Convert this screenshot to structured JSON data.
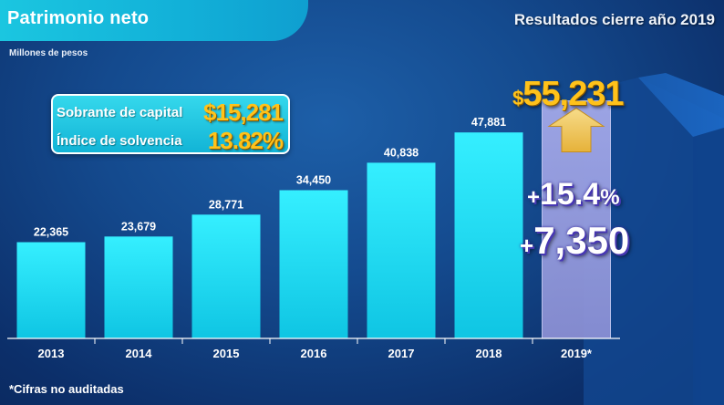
{
  "header": {
    "title": "Patrimonio neto",
    "subtitle": "Resultados cierre año 2019"
  },
  "units": "Millones de pesos",
  "footnote": "*Cifras no auditadas",
  "info_box": {
    "capital_label": "Sobrante de capital",
    "capital_value": "$15,281",
    "solvency_label": "Índice de solvencia",
    "solvency_value": "13.82%"
  },
  "highlight": {
    "total_currency": "$",
    "total_value": "55,231",
    "growth_pct_sign": "+",
    "growth_pct_value": "15.4",
    "growth_pct_unit": "%",
    "growth_abs_sign": "+",
    "growth_abs_value": "7,350"
  },
  "colors": {
    "bar": "#1ee3f5",
    "highlight_bar": "#9aa0e0",
    "accent": "#ffc21a"
  },
  "chart_data": {
    "type": "bar",
    "title": "Patrimonio neto",
    "ylabel": "Millones de pesos",
    "categories": [
      "2013",
      "2014",
      "2015",
      "2016",
      "2017",
      "2018",
      "2019*"
    ],
    "values": [
      22365,
      23679,
      28771,
      34450,
      40838,
      47881,
      55231
    ],
    "value_labels": [
      "22,365",
      "23,679",
      "28,771",
      "34,450",
      "40,838",
      "47,881",
      ""
    ],
    "highlight_index": 6,
    "ylim": [
      0,
      60000
    ],
    "grid": false,
    "legend": false
  }
}
